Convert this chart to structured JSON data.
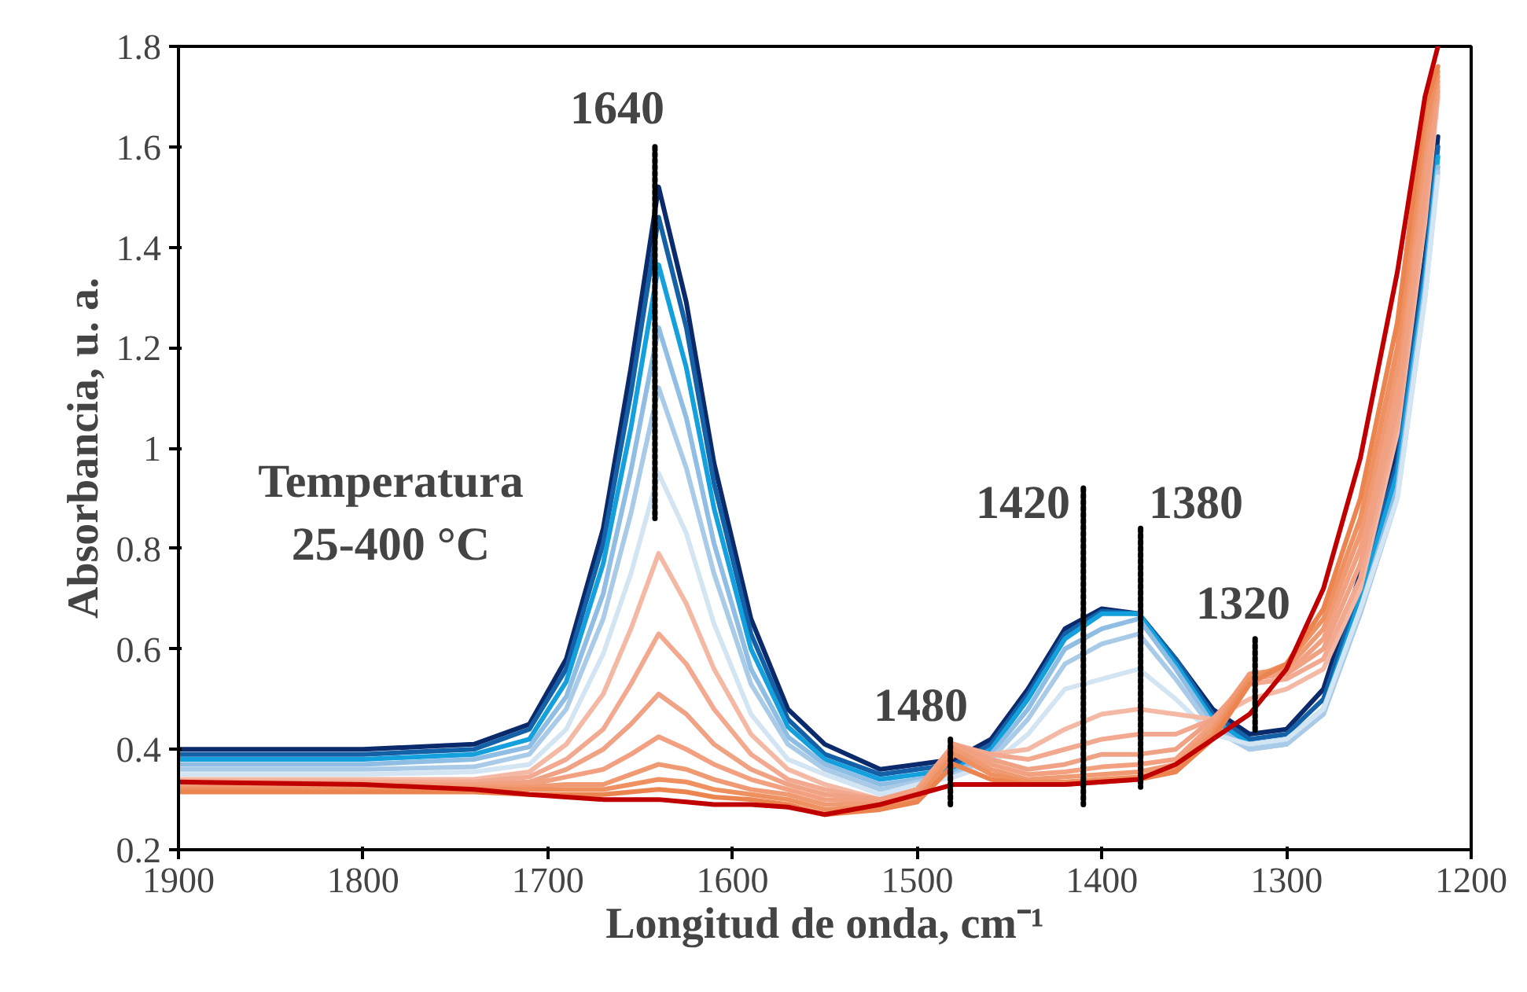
{
  "chart_data": {
    "type": "line",
    "xlabel": "Longitud de onda, cm⁻¹",
    "ylabel": "Absorbancia, u. a.",
    "xlim": [
      1900,
      1200
    ],
    "ylim": [
      0.2,
      1.8
    ],
    "xticks": [
      1900,
      1800,
      1700,
      1600,
      1500,
      1400,
      1300,
      1200
    ],
    "yticks": [
      0.2,
      0.4,
      0.6,
      0.8,
      1,
      1.2,
      1.4,
      1.6,
      1.8
    ],
    "x": [
      1900,
      1800,
      1740,
      1710,
      1690,
      1670,
      1655,
      1640,
      1625,
      1610,
      1590,
      1570,
      1550,
      1520,
      1500,
      1480,
      1460,
      1440,
      1420,
      1400,
      1380,
      1360,
      1340,
      1320,
      1300,
      1280,
      1260,
      1240,
      1225,
      1218
    ],
    "series": [
      {
        "color": "#0b2a6b",
        "values": [
          0.4,
          0.4,
          0.41,
          0.45,
          0.58,
          0.84,
          1.16,
          1.52,
          1.29,
          0.97,
          0.66,
          0.48,
          0.41,
          0.36,
          0.37,
          0.38,
          0.42,
          0.52,
          0.64,
          0.68,
          0.67,
          0.58,
          0.48,
          0.43,
          0.44,
          0.52,
          0.75,
          1.0,
          1.38,
          1.62
        ]
      },
      {
        "color": "#1461a8",
        "values": [
          0.39,
          0.39,
          0.4,
          0.44,
          0.56,
          0.81,
          1.11,
          1.46,
          1.24,
          0.93,
          0.63,
          0.46,
          0.39,
          0.35,
          0.36,
          0.37,
          0.41,
          0.51,
          0.63,
          0.675,
          0.67,
          0.58,
          0.47,
          0.42,
          0.43,
          0.5,
          0.72,
          0.97,
          1.36,
          1.6
        ]
      },
      {
        "color": "#14a0dc",
        "values": [
          0.38,
          0.38,
          0.39,
          0.42,
          0.535,
          0.77,
          1.04,
          1.365,
          1.16,
          0.88,
          0.6,
          0.445,
          0.38,
          0.34,
          0.35,
          0.36,
          0.4,
          0.5,
          0.62,
          0.67,
          0.67,
          0.57,
          0.46,
          0.41,
          0.42,
          0.48,
          0.7,
          0.95,
          1.34,
          1.58
        ]
      },
      {
        "color": "#8fbde3",
        "values": [
          0.37,
          0.37,
          0.38,
          0.405,
          0.505,
          0.71,
          0.955,
          1.24,
          1.06,
          0.81,
          0.56,
          0.425,
          0.37,
          0.33,
          0.34,
          0.355,
          0.39,
          0.48,
          0.6,
          0.64,
          0.66,
          0.56,
          0.45,
          0.4,
          0.41,
          0.47,
          0.68,
          0.92,
          1.32,
          1.56
        ]
      },
      {
        "color": "#a9cbe8",
        "values": [
          0.36,
          0.36,
          0.365,
          0.39,
          0.48,
          0.66,
          0.87,
          1.12,
          0.96,
          0.75,
          0.53,
          0.41,
          0.36,
          0.32,
          0.335,
          0.35,
          0.38,
          0.46,
          0.57,
          0.61,
          0.63,
          0.54,
          0.44,
          0.4,
          0.41,
          0.47,
          0.67,
          0.9,
          1.3,
          1.55
        ]
      },
      {
        "color": "#d3e4f3",
        "values": [
          0.35,
          0.35,
          0.355,
          0.37,
          0.44,
          0.59,
          0.75,
          0.95,
          0.83,
          0.65,
          0.47,
          0.38,
          0.35,
          0.31,
          0.33,
          0.345,
          0.37,
          0.43,
          0.52,
          0.54,
          0.56,
          0.5,
          0.43,
          0.41,
          0.42,
          0.48,
          0.68,
          0.9,
          1.3,
          1.54
        ]
      },
      {
        "color": "#f4b9a4",
        "values": [
          0.34,
          0.34,
          0.34,
          0.355,
          0.41,
          0.51,
          0.64,
          0.79,
          0.69,
          0.56,
          0.43,
          0.36,
          0.33,
          0.3,
          0.32,
          0.4,
          0.39,
          0.4,
          0.44,
          0.47,
          0.48,
          0.47,
          0.46,
          0.5,
          0.52,
          0.56,
          0.72,
          1.03,
          1.45,
          1.7
        ]
      },
      {
        "color": "#f2a98f",
        "values": [
          0.335,
          0.335,
          0.335,
          0.345,
          0.38,
          0.44,
          0.53,
          0.63,
          0.57,
          0.48,
          0.39,
          0.34,
          0.32,
          0.3,
          0.32,
          0.41,
          0.39,
          0.38,
          0.4,
          0.42,
          0.43,
          0.43,
          0.46,
          0.53,
          0.54,
          0.58,
          0.74,
          1.05,
          1.47,
          1.71
        ]
      },
      {
        "color": "#f0a285",
        "values": [
          0.33,
          0.33,
          0.33,
          0.335,
          0.36,
          0.4,
          0.45,
          0.51,
          0.47,
          0.41,
          0.36,
          0.33,
          0.31,
          0.3,
          0.32,
          0.41,
          0.38,
          0.36,
          0.37,
          0.39,
          0.39,
          0.4,
          0.46,
          0.54,
          0.55,
          0.6,
          0.77,
          1.08,
          1.5,
          1.72
        ]
      },
      {
        "color": "#f2a07f",
        "values": [
          0.33,
          0.33,
          0.33,
          0.33,
          0.345,
          0.36,
          0.39,
          0.425,
          0.4,
          0.37,
          0.34,
          0.32,
          0.3,
          0.295,
          0.32,
          0.41,
          0.37,
          0.35,
          0.355,
          0.365,
          0.37,
          0.38,
          0.45,
          0.55,
          0.55,
          0.62,
          0.8,
          1.12,
          1.55,
          1.73
        ]
      },
      {
        "color": "#f09a74",
        "values": [
          0.325,
          0.325,
          0.325,
          0.325,
          0.33,
          0.33,
          0.35,
          0.37,
          0.36,
          0.34,
          0.32,
          0.31,
          0.29,
          0.29,
          0.31,
          0.4,
          0.36,
          0.34,
          0.345,
          0.35,
          0.355,
          0.37,
          0.44,
          0.55,
          0.56,
          0.64,
          0.83,
          1.16,
          1.6,
          1.74
        ]
      },
      {
        "color": "#ef9060",
        "values": [
          0.32,
          0.32,
          0.32,
          0.32,
          0.32,
          0.32,
          0.33,
          0.34,
          0.335,
          0.32,
          0.31,
          0.3,
          0.28,
          0.285,
          0.3,
          0.39,
          0.35,
          0.335,
          0.335,
          0.34,
          0.345,
          0.36,
          0.43,
          0.54,
          0.57,
          0.66,
          0.86,
          1.2,
          1.64,
          1.75
        ]
      },
      {
        "color": "#ec8450",
        "values": [
          0.315,
          0.315,
          0.315,
          0.31,
          0.31,
          0.31,
          0.315,
          0.32,
          0.315,
          0.305,
          0.3,
          0.29,
          0.27,
          0.28,
          0.295,
          0.37,
          0.34,
          0.33,
          0.33,
          0.335,
          0.34,
          0.355,
          0.42,
          0.53,
          0.57,
          0.68,
          0.9,
          1.25,
          1.68,
          1.76
        ]
      },
      {
        "color": "#c00000",
        "values": [
          0.335,
          0.33,
          0.32,
          0.31,
          0.305,
          0.3,
          0.3,
          0.3,
          0.295,
          0.29,
          0.29,
          0.285,
          0.27,
          0.29,
          0.31,
          0.33,
          0.33,
          0.33,
          0.33,
          0.335,
          0.34,
          0.37,
          0.42,
          0.47,
          0.56,
          0.72,
          0.98,
          1.35,
          1.7,
          1.8
        ]
      },
      {
        "type": "line",
        "x": [
          1642,
          1642
        ],
        "values": [
          1.6,
          0.86
        ],
        "color": "#000000",
        "line_style": "dotted"
      },
      {
        "type": "line",
        "x": [
          1482,
          1482
        ],
        "values": [
          0.42,
          0.29
        ],
        "color": "#000000",
        "line_style": "dotted"
      },
      {
        "type": "line",
        "x": [
          1410,
          1410
        ],
        "values": [
          0.92,
          0.29
        ],
        "color": "#000000",
        "line_style": "dotted"
      },
      {
        "type": "line",
        "x": [
          1379,
          1379
        ],
        "values": [
          0.84,
          0.325
        ],
        "color": "#000000",
        "line_style": "dotted"
      },
      {
        "type": "line",
        "x": [
          1317,
          1317
        ],
        "values": [
          0.62,
          0.435
        ],
        "color": "#000000",
        "line_style": "dotted"
      }
    ],
    "annotations": [
      "1640",
      "1480",
      "1420",
      "1380",
      "1320",
      "Temperatura",
      "25-400 °C"
    ]
  }
}
